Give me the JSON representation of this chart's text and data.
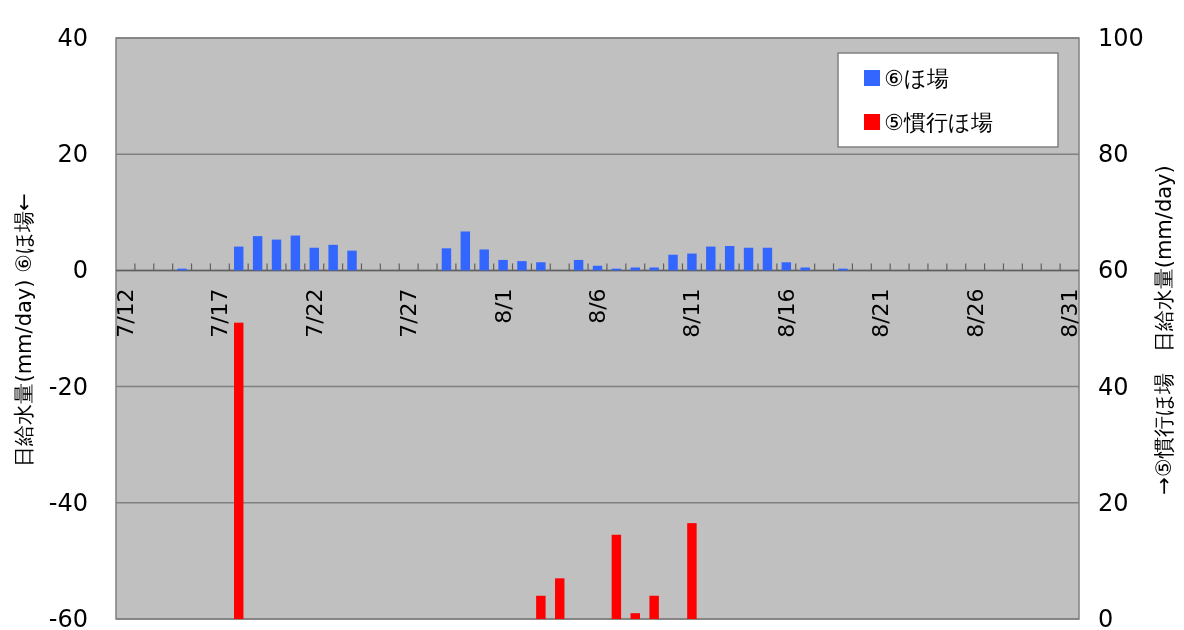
{
  "chart_data": {
    "type": "bar",
    "categories": [
      "7/12",
      null,
      null,
      null,
      null,
      "7/17",
      null,
      null,
      null,
      null,
      "7/22",
      null,
      null,
      null,
      null,
      "7/27",
      null,
      null,
      null,
      null,
      "8/1",
      null,
      null,
      null,
      null,
      "8/6",
      null,
      null,
      null,
      null,
      "8/11",
      null,
      null,
      null,
      null,
      "8/16",
      null,
      null,
      null,
      null,
      "8/21",
      null,
      null,
      null,
      null,
      "8/26",
      null,
      null,
      null,
      null,
      "8/31"
    ],
    "series": [
      {
        "name": "⑥ほ場",
        "color": "#3366ff",
        "axis": "y",
        "values": [
          null,
          null,
          null,
          0.3,
          null,
          null,
          4.1,
          5.9,
          5.3,
          6.0,
          3.9,
          4.4,
          3.4,
          null,
          null,
          null,
          null,
          3.8,
          6.7,
          3.6,
          1.8,
          1.6,
          1.4,
          null,
          1.8,
          0.8,
          0.3,
          0.5,
          0.5,
          2.7,
          2.9,
          4.1,
          4.2,
          3.9,
          3.9,
          1.4,
          0.5,
          null,
          0.3,
          null,
          null,
          null,
          null,
          null,
          null,
          null,
          null,
          null,
          null,
          null,
          null
        ]
      },
      {
        "name": "⑤慣行ほ場",
        "color": "#ff0000",
        "axis": "y2",
        "values": [
          null,
          null,
          null,
          null,
          null,
          null,
          51,
          null,
          null,
          null,
          null,
          null,
          null,
          null,
          null,
          null,
          null,
          null,
          null,
          null,
          null,
          null,
          4,
          7,
          null,
          null,
          14.5,
          1,
          4,
          null,
          16.5,
          null,
          null,
          null,
          null,
          null,
          null,
          null,
          null,
          null,
          null,
          null,
          null,
          null,
          null,
          null,
          null,
          null,
          null,
          null,
          null
        ]
      }
    ],
    "ylabel": "日給水量(mm/day) ⑥ほ場←",
    "y2label": "→⑤慣行ほ場　日給水量(mm/day)",
    "ylim": [
      -60,
      40
    ],
    "yticks": [
      -60,
      -40,
      -20,
      0,
      20,
      40
    ],
    "y2lim": [
      0,
      100
    ],
    "y2ticks": [
      0,
      20,
      40,
      60,
      80,
      100
    ],
    "grid": "y",
    "legend": "top right"
  }
}
